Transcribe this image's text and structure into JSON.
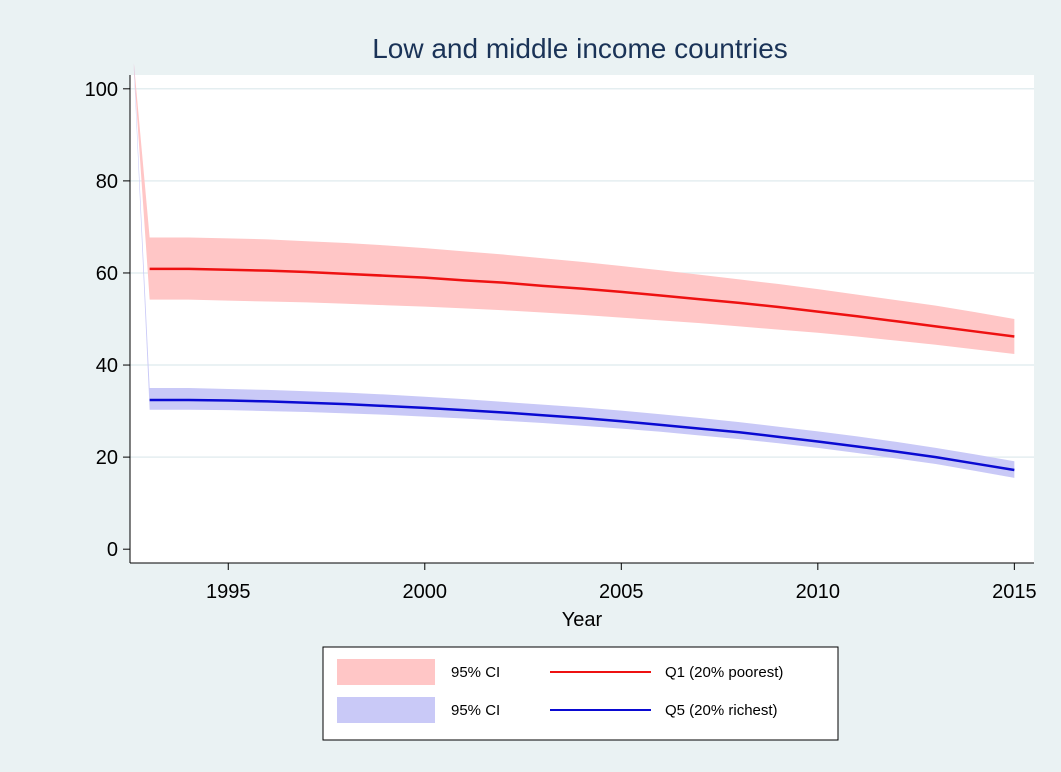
{
  "chart_data": {
    "type": "line",
    "title": "Low and middle income countries",
    "xlabel": "Year",
    "ylabel": "",
    "xlim": [
      1992.5,
      2015.5
    ],
    "ylim": [
      -3,
      103
    ],
    "x_ticks": [
      1995,
      2000,
      2005,
      2010,
      2015
    ],
    "y_ticks": [
      0,
      20,
      40,
      60,
      80,
      100
    ],
    "grid": true,
    "legend_position": "bottom",
    "series": [
      {
        "name": "Q1 (20% poorest)",
        "color": "#ee1111",
        "ci_label": "95% CI",
        "ci_color": "#ffc6c6",
        "x": [
          1993,
          1994,
          1995,
          1996,
          1997,
          1998,
          1999,
          2000,
          2001,
          2002,
          2003,
          2004,
          2005,
          2006,
          2007,
          2008,
          2009,
          2010,
          2011,
          2012,
          2013,
          2014,
          2015
        ],
        "values": [
          60.9,
          60.9,
          60.7,
          60.5,
          60.2,
          59.8,
          59.4,
          59.0,
          58.4,
          57.9,
          57.2,
          56.6,
          55.9,
          55.1,
          54.3,
          53.5,
          52.6,
          51.6,
          50.6,
          49.5,
          48.4,
          47.3,
          46.2
        ],
        "ci_lower": [
          54.2,
          54.2,
          54.0,
          53.8,
          53.6,
          53.3,
          53.0,
          52.7,
          52.3,
          51.9,
          51.4,
          50.9,
          50.3,
          49.7,
          49.1,
          48.4,
          47.7,
          47.0,
          46.2,
          45.3,
          44.4,
          43.4,
          42.4
        ],
        "ci_upper": [
          67.7,
          67.7,
          67.5,
          67.3,
          66.9,
          66.5,
          66.0,
          65.4,
          64.7,
          64.0,
          63.2,
          62.4,
          61.5,
          60.6,
          59.6,
          58.6,
          57.6,
          56.5,
          55.3,
          54.1,
          52.9,
          51.5,
          50.0
        ],
        "ci_tail_start": [
          1992.6,
          104.0,
          1992.6,
          105.5
        ]
      },
      {
        "name": "Q5 (20% richest)",
        "color": "#0a0ad2",
        "ci_label": "95% CI",
        "ci_color": "#c9c9f7",
        "x": [
          1993,
          1994,
          1995,
          1996,
          1997,
          1998,
          1999,
          2000,
          2001,
          2002,
          2003,
          2004,
          2005,
          2006,
          2007,
          2008,
          2009,
          2010,
          2011,
          2012,
          2013,
          2014,
          2015
        ],
        "values": [
          32.4,
          32.4,
          32.3,
          32.1,
          31.8,
          31.5,
          31.1,
          30.7,
          30.2,
          29.7,
          29.1,
          28.5,
          27.8,
          27.0,
          26.2,
          25.4,
          24.4,
          23.4,
          22.3,
          21.2,
          20.0,
          18.6,
          17.2
        ],
        "ci_lower": [
          30.3,
          30.3,
          30.2,
          30.0,
          29.8,
          29.5,
          29.2,
          28.8,
          28.4,
          27.9,
          27.4,
          26.8,
          26.2,
          25.5,
          24.7,
          23.9,
          23.0,
          22.0,
          20.9,
          19.7,
          18.5,
          17.0,
          15.5
        ],
        "ci_upper": [
          35.0,
          35.0,
          34.8,
          34.6,
          34.3,
          34.0,
          33.6,
          33.1,
          32.6,
          32.0,
          31.4,
          30.8,
          30.1,
          29.3,
          28.5,
          27.6,
          26.6,
          25.6,
          24.5,
          23.3,
          22.0,
          20.6,
          19.1
        ],
        "ci_tail_start": [
          1992.6,
          104.0,
          1992.6,
          105.5
        ]
      }
    ]
  }
}
